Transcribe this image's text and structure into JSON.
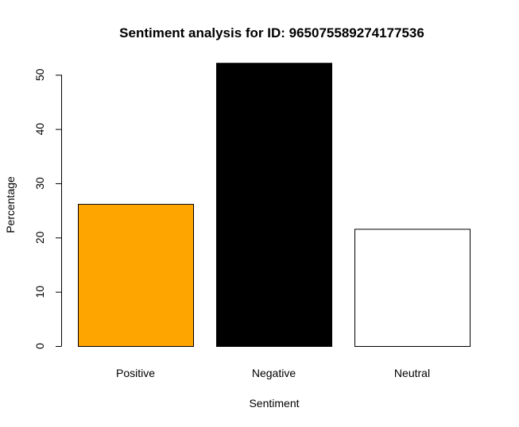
{
  "chart_data": {
    "type": "bar",
    "title": "Sentiment analysis for ID: 965075589274177536",
    "xlabel": "Sentiment",
    "ylabel": "Percentage",
    "categories": [
      "Positive",
      "Negative",
      "Neutral"
    ],
    "values": [
      26.2,
      52.2,
      21.6
    ],
    "colors": [
      "#FFA500",
      "#000000",
      "#FFFFFF"
    ],
    "ylim": [
      0,
      52.2
    ],
    "yticks": [
      0,
      10,
      20,
      30,
      40,
      50
    ],
    "grid": false,
    "legend": "none"
  }
}
